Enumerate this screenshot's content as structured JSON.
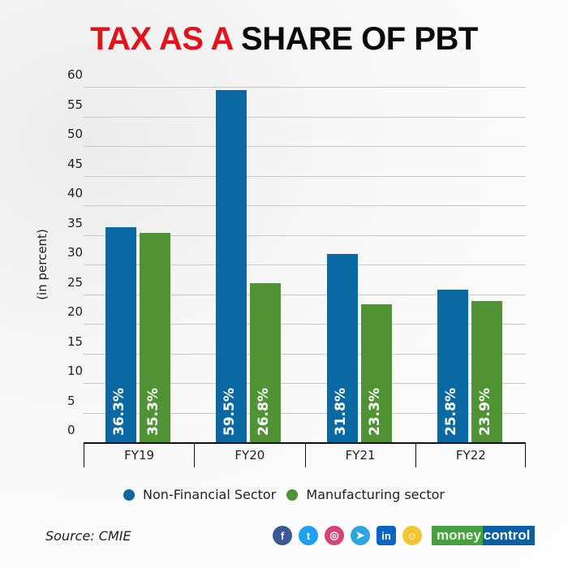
{
  "title": {
    "part_red": "TAX AS A",
    "part_black": "SHARE OF PBT"
  },
  "colors": {
    "non_financial": "#0a68a3",
    "manufacturing": "#4f9335",
    "title_red": "#e3121b"
  },
  "yaxis": {
    "label": "(in percent)",
    "ticks": [
      "0",
      "5",
      "10",
      "15",
      "20",
      "25",
      "30",
      "35",
      "40",
      "45",
      "50",
      "55",
      "60"
    ]
  },
  "xaxis": {
    "categories": [
      "FY19",
      "FY20",
      "FY21",
      "FY22"
    ]
  },
  "bars": {
    "non_financial": [
      "36.3%",
      "59.5%",
      "31.8%",
      "25.8%"
    ],
    "manufacturing": [
      "35.3%",
      "26.8%",
      "23.3%",
      "23.9%"
    ]
  },
  "legend": {
    "non_financial": "Non-Financial Sector",
    "manufacturing": "Manufacturing sector"
  },
  "footer": {
    "source": "Source: CMIE",
    "social": [
      "facebook",
      "twitter",
      "instagram",
      "telegram",
      "linkedin",
      "koo"
    ],
    "social_glyphs": [
      "f",
      "t",
      "◎",
      "➤",
      "in",
      "☺"
    ],
    "brand_money": "money",
    "brand_control": "control"
  },
  "chart_data": {
    "type": "bar",
    "title": "TAX AS A SHARE OF PBT",
    "categories": [
      "FY19",
      "FY20",
      "FY21",
      "FY22"
    ],
    "series": [
      {
        "name": "Non-Financial Sector",
        "values": [
          36.3,
          59.5,
          31.8,
          25.8
        ],
        "color": "#0a68a3"
      },
      {
        "name": "Manufacturing sector",
        "values": [
          35.3,
          26.8,
          23.3,
          23.9
        ],
        "color": "#4f9335"
      }
    ],
    "xlabel": "",
    "ylabel": "(in percent)",
    "ylim": [
      0,
      60
    ],
    "yticks": [
      0,
      5,
      10,
      15,
      20,
      25,
      30,
      35,
      40,
      45,
      50,
      55,
      60
    ],
    "grid": true,
    "legend_position": "bottom",
    "annotations": [
      "Source: CMIE"
    ]
  }
}
